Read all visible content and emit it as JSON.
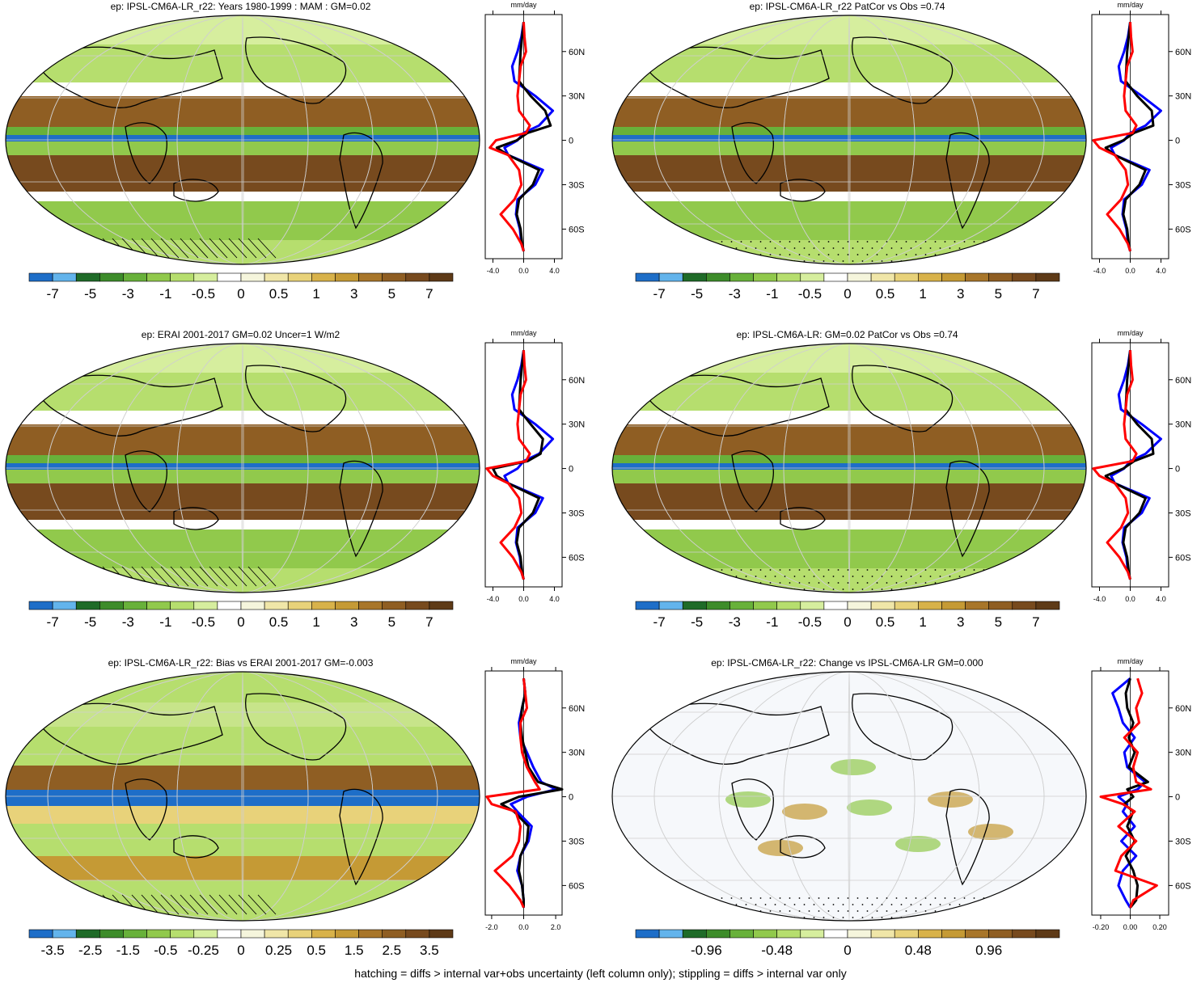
{
  "footer": "hatching = diffs > internal var+obs uncertainty (left column only); stippling = diffs > internal var only",
  "chart_data": [
    {
      "type": "heatmap",
      "title": "ep: IPSL-CM6A-LR_r22: Years 1980-1999 : MAM : GM=0.02",
      "colorbar_labels": [
        "-7",
        "-5",
        "-3",
        "-1",
        "-0.5",
        "0",
        "0.5",
        "1",
        "3",
        "5",
        "7"
      ],
      "zonal_profile": {
        "units": "mm/day",
        "y_ticks": [
          "60N",
          "30N",
          "0",
          "30S",
          "60S"
        ],
        "x_ticks": [
          "-4.0",
          "0.0",
          "4.0"
        ],
        "xlim": [
          -5,
          5
        ],
        "lat": [
          80,
          70,
          60,
          50,
          40,
          30,
          20,
          10,
          5,
          0,
          -5,
          -10,
          -20,
          -30,
          -40,
          -50,
          -60,
          -70,
          -75
        ],
        "series": [
          {
            "color": "#0000ff",
            "values": [
              0,
              -0.3,
              -0.8,
              -1.5,
              -1.2,
              1.5,
              3.8,
              2.0,
              0.0,
              -0.8,
              -2.5,
              -2.0,
              2.5,
              1.5,
              -0.8,
              -1.0,
              -0.5,
              -0.3,
              0
            ]
          },
          {
            "color": "#000000",
            "values": [
              0,
              -0.2,
              -0.4,
              -0.5,
              -0.6,
              0.9,
              2.8,
              3.5,
              0.5,
              -0.9,
              -3.5,
              -2.0,
              2.0,
              1.2,
              -0.6,
              -0.9,
              -0.4,
              -0.2,
              0
            ]
          },
          {
            "color": "#ff0000",
            "values": [
              0,
              0.1,
              0.3,
              -0.4,
              -0.6,
              -0.8,
              -0.6,
              0.8,
              0.3,
              -3.6,
              -4.4,
              -2.0,
              -0.6,
              -0.3,
              -1.2,
              -3.0,
              -1.4,
              -0.3,
              0
            ]
          }
        ]
      }
    },
    {
      "type": "heatmap",
      "title": "ep: IPSL-CM6A-LR_r22 PatCor vs Obs =0.74",
      "colorbar_labels": [
        "-7",
        "-5",
        "-3",
        "-1",
        "-0.5",
        "0",
        "0.5",
        "1",
        "3",
        "5",
        "7"
      ],
      "zonal_profile": {
        "units": "mm/day",
        "y_ticks": [
          "60N",
          "30N",
          "0",
          "30S",
          "60S"
        ],
        "x_ticks": [
          "-4.0",
          "0.0",
          "4.0"
        ],
        "xlim": [
          -5,
          5
        ],
        "lat": [
          80,
          70,
          60,
          50,
          40,
          30,
          20,
          10,
          5,
          0,
          -5,
          -10,
          -20,
          -30,
          -40,
          -50,
          -60,
          -70,
          -75
        ],
        "series": [
          {
            "color": "#0000ff",
            "values": [
              0,
              -0.3,
              -0.8,
              -1.5,
              -1.2,
              1.5,
              4.0,
              2.0,
              0.0,
              -0.8,
              -2.5,
              -2.0,
              2.5,
              1.5,
              -0.8,
              -1.0,
              -0.5,
              -0.3,
              0
            ]
          },
          {
            "color": "#000000",
            "values": [
              0,
              -0.2,
              -0.4,
              -0.5,
              -0.6,
              0.9,
              2.8,
              3.0,
              0.5,
              -0.9,
              -3.2,
              -2.0,
              2.0,
              1.2,
              -0.6,
              -0.9,
              -0.4,
              -0.2,
              0
            ]
          },
          {
            "color": "#ff0000",
            "values": [
              0,
              0.1,
              0.3,
              -0.4,
              -0.6,
              -0.8,
              -0.6,
              0.8,
              0.3,
              -4.8,
              -4.0,
              -2.0,
              -0.6,
              -0.3,
              -1.2,
              -3.0,
              -1.4,
              -0.3,
              0
            ]
          }
        ]
      }
    },
    {
      "type": "heatmap",
      "title": "ep: ERAI 2001-2017 GM=0.02 Uncer=1 W/m2",
      "colorbar_labels": [
        "-7",
        "-5",
        "-3",
        "-1",
        "-0.5",
        "0",
        "0.5",
        "1",
        "3",
        "5",
        "7"
      ],
      "zonal_profile": {
        "units": "mm/day",
        "y_ticks": [
          "60N",
          "30N",
          "0",
          "30S",
          "60S"
        ],
        "x_ticks": [
          "-4.0",
          "0.0",
          "4.0"
        ],
        "xlim": [
          -5,
          5
        ],
        "lat": [
          80,
          70,
          60,
          50,
          40,
          30,
          20,
          10,
          5,
          0,
          -5,
          -10,
          -20,
          -30,
          -40,
          -50,
          -60,
          -70,
          -75
        ],
        "series": [
          {
            "color": "#0000ff",
            "values": [
              0,
              -0.3,
              -0.8,
              -1.5,
              -1.2,
              1.5,
              3.8,
              2.0,
              0.0,
              -0.8,
              -2.5,
              -2.0,
              2.5,
              1.5,
              -0.8,
              -1.0,
              -0.5,
              -0.3,
              0
            ]
          },
          {
            "color": "#000000",
            "values": [
              0,
              -0.2,
              -0.4,
              -0.5,
              -0.6,
              0.9,
              2.5,
              2.2,
              0.5,
              -4.0,
              -3.5,
              -2.0,
              2.0,
              1.2,
              -0.6,
              -0.9,
              -0.4,
              -0.2,
              0
            ]
          },
          {
            "color": "#ff0000",
            "values": [
              0,
              0.1,
              0.3,
              -0.4,
              -0.6,
              -0.8,
              -0.6,
              0.8,
              0.3,
              -4.8,
              -4.0,
              -2.0,
              -0.6,
              -0.3,
              -1.2,
              -3.0,
              -1.4,
              -0.3,
              0
            ]
          }
        ]
      }
    },
    {
      "type": "heatmap",
      "title": "ep: IPSL-CM6A-LR: GM=0.02 PatCor vs Obs =0.74",
      "colorbar_labels": [
        "-7",
        "-5",
        "-3",
        "-1",
        "-0.5",
        "0",
        "0.5",
        "1",
        "3",
        "5",
        "7"
      ],
      "zonal_profile": {
        "units": "mm/day",
        "y_ticks": [
          "60N",
          "30N",
          "0",
          "30S",
          "60S"
        ],
        "x_ticks": [
          "-4.0",
          "0.0",
          "4.0"
        ],
        "xlim": [
          -5,
          5
        ],
        "lat": [
          80,
          70,
          60,
          50,
          40,
          30,
          20,
          10,
          5,
          0,
          -5,
          -10,
          -20,
          -30,
          -40,
          -50,
          -60,
          -70,
          -75
        ],
        "series": [
          {
            "color": "#0000ff",
            "values": [
              0,
              -0.3,
              -0.8,
              -1.5,
              -1.2,
              1.5,
              4.0,
              2.0,
              0.0,
              -0.8,
              -2.5,
              -2.0,
              2.5,
              1.5,
              -0.8,
              -1.0,
              -0.5,
              -0.3,
              0
            ]
          },
          {
            "color": "#000000",
            "values": [
              0,
              -0.2,
              -0.4,
              -0.5,
              -0.6,
              0.9,
              2.8,
              3.0,
              0.5,
              -0.9,
              -3.2,
              -2.0,
              2.0,
              1.2,
              -0.6,
              -0.9,
              -0.4,
              -0.2,
              0
            ]
          },
          {
            "color": "#ff0000",
            "values": [
              0,
              0.1,
              0.3,
              -0.4,
              -0.6,
              -0.8,
              -0.6,
              0.8,
              0.3,
              -4.8,
              -4.0,
              -2.0,
              -0.6,
              -0.3,
              -1.2,
              -3.0,
              -1.4,
              -0.3,
              0
            ]
          }
        ]
      }
    },
    {
      "type": "heatmap",
      "title": "ep: IPSL-CM6A-LR_r22: Bias vs ERAI 2001-2017 GM=-0.003",
      "colorbar_labels": [
        "-3.5",
        "-2.5",
        "-1.5",
        "-0.5",
        "-0.25",
        "0",
        "0.25",
        "0.5",
        "1.5",
        "2.5",
        "3.5"
      ],
      "zonal_profile": {
        "units": "mm/day",
        "y_ticks": [
          "60N",
          "30N",
          "0",
          "30S",
          "60S"
        ],
        "x_ticks": [
          "-2.0",
          "0.0",
          "2.0"
        ],
        "xlim": [
          -2.4,
          2.4
        ],
        "lat": [
          80,
          70,
          60,
          50,
          40,
          30,
          20,
          10,
          5,
          0,
          -5,
          -10,
          -20,
          -30,
          -40,
          -50,
          -60,
          -70,
          -75
        ],
        "series": [
          {
            "color": "#0000ff",
            "values": [
              0,
              0.1,
              -0.1,
              -0.3,
              -0.2,
              0.2,
              0.6,
              1.1,
              2.0,
              0.2,
              -0.8,
              -0.4,
              0.5,
              0.3,
              -0.2,
              -0.4,
              -0.1,
              0.0,
              0
            ]
          },
          {
            "color": "#000000",
            "values": [
              0,
              0.1,
              -0.1,
              -0.2,
              -0.1,
              0.1,
              0.3,
              0.9,
              2.4,
              -0.3,
              -1.4,
              -0.6,
              0.3,
              0.2,
              -0.2,
              -0.3,
              -0.1,
              0.0,
              0
            ]
          },
          {
            "color": "#ff0000",
            "values": [
              0,
              0.1,
              0.2,
              -0.2,
              -0.2,
              -0.1,
              0.2,
              0.7,
              1.0,
              -2.3,
              -2.0,
              -0.5,
              -0.2,
              -0.3,
              -0.7,
              -1.8,
              -0.9,
              -0.2,
              0
            ]
          }
        ]
      }
    },
    {
      "type": "heatmap",
      "title": "ep: IPSL-CM6A-LR_r22: Change vs IPSL-CM6A-LR GM=0.000",
      "colorbar_labels": [
        "-0.96",
        "-0.48",
        "0",
        "0.48",
        "0.96"
      ],
      "zonal_profile": {
        "units": "mm/day",
        "y_ticks": [
          "60N",
          "30N",
          "0",
          "30S",
          "60S"
        ],
        "x_ticks": [
          "-0.20",
          "0.00",
          "0.20"
        ],
        "xlim": [
          -0.26,
          0.26
        ],
        "lat": [
          80,
          70,
          60,
          50,
          40,
          30,
          20,
          10,
          5,
          0,
          -5,
          -10,
          -20,
          -30,
          -40,
          -50,
          -60,
          -70,
          -75
        ],
        "series": [
          {
            "color": "#0000ff",
            "values": [
              0,
              -0.12,
              -0.08,
              -0.05,
              0.03,
              -0.04,
              -0.02,
              0.1,
              0.05,
              -0.08,
              -0.02,
              -0.05,
              0.03,
              -0.06,
              0.04,
              -0.05,
              -0.08,
              -0.03,
              0
            ]
          },
          {
            "color": "#000000",
            "values": [
              0,
              -0.03,
              -0.02,
              0.02,
              -0.01,
              0.03,
              -0.01,
              0.12,
              -0.02,
              0.02,
              -0.04,
              0.02,
              -0.02,
              0.03,
              -0.03,
              0.02,
              0.05,
              0.04,
              0
            ]
          },
          {
            "color": "#ff0000",
            "values": [
              0.05,
              0.08,
              0.04,
              0.06,
              -0.04,
              0.05,
              0.02,
              0.04,
              0.14,
              -0.2,
              -0.05,
              0.03,
              -0.08,
              0.04,
              -0.06,
              -0.1,
              0.18,
              0.02,
              0
            ]
          }
        ]
      }
    }
  ],
  "colorbar": {
    "colors": [
      "#1e6ec8",
      "#63b4ec",
      "#1f6b28",
      "#3d8c2a",
      "#68b13a",
      "#91c94c",
      "#b6de6e",
      "#d6ee9e",
      "#ffffff",
      "#f5f5dc",
      "#f0e6a8",
      "#e8d27a",
      "#d8b24a",
      "#c59a35",
      "#a8762a",
      "#8f5e23",
      "#774a1e",
      "#5e3a17"
    ]
  }
}
